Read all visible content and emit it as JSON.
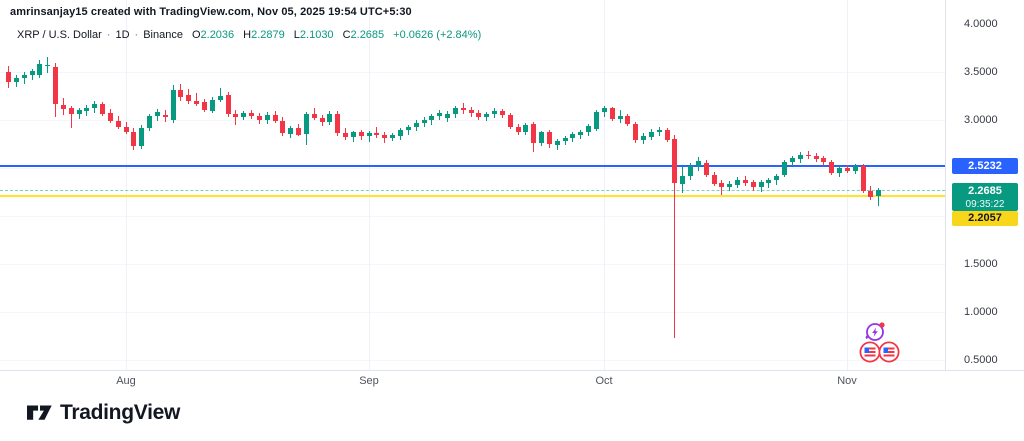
{
  "attribution": "amrinsanjay15 created with TradingView.com, Nov 05, 2025 19:54 UTC+5:30",
  "legend": {
    "symbol": "XRP / U.S. Dollar",
    "timeframe": "1D",
    "exchange": "Binance",
    "sep": "·",
    "ohlc": [
      {
        "label": "O",
        "value": "2.2036"
      },
      {
        "label": "H",
        "value": "2.2879"
      },
      {
        "label": "L",
        "value": "2.1030"
      },
      {
        "label": "C",
        "value": "2.2685"
      }
    ],
    "change": "+0.0626 (+2.84%)"
  },
  "footer": {
    "logo_text": "TradingView"
  },
  "icons": {
    "event_flash": "flash-event-icon",
    "event_flags": "us-economic-events-icon"
  },
  "colors": {
    "up": "#089981",
    "down": "#f23645",
    "blue_line": "#2962ff",
    "yellow_line": "#ffe32e",
    "yellow_badge": "#f8d61b",
    "current_dotted": "rgba(8,153,129,0.5)"
  },
  "chart_data": {
    "type": "candlestick",
    "title": "XRP / U.S. Dollar",
    "interval": "1D",
    "exchange": "Binance",
    "y_axis": {
      "range": [
        0.396,
        4.104
      ],
      "labels": [
        {
          "text": "4.0000",
          "price": 4.0
        },
        {
          "text": "3.5000",
          "price": 3.5
        },
        {
          "text": "3.0000",
          "price": 3.0
        },
        {
          "text": "1.5000",
          "price": 1.5
        },
        {
          "text": "1.0000",
          "price": 1.0
        },
        {
          "text": "0.5000",
          "price": 0.5
        }
      ],
      "grid_prices": [
        3.5,
        3.0,
        2.5,
        2.0,
        1.5,
        1.0,
        0.5
      ]
    },
    "x_axis": {
      "ticks": [
        {
          "label": "Aug",
          "index": 15
        },
        {
          "label": "Sep",
          "index": 46
        },
        {
          "label": "Oct",
          "index": 76
        },
        {
          "label": "Nov",
          "index": 107
        }
      ]
    },
    "levels": [
      {
        "price": 2.5232,
        "label": "2.5232",
        "style": "solid",
        "color": "#2962ff"
      },
      {
        "price": 2.2685,
        "label": "2.2685",
        "countdown": "09:35:22",
        "style": "dotted",
        "color": "rgba(8,153,129,0.5)",
        "type": "current-price"
      },
      {
        "price": 2.2057,
        "label": "2.2057",
        "style": "solid",
        "color": "#ffe32e"
      }
    ],
    "candles": [
      [
        "2025-07-17",
        3.5,
        3.56,
        3.33,
        3.4
      ],
      [
        "2025-07-18",
        3.4,
        3.47,
        3.35,
        3.44
      ],
      [
        "2025-07-19",
        3.44,
        3.5,
        3.38,
        3.47
      ],
      [
        "2025-07-20",
        3.47,
        3.53,
        3.42,
        3.51
      ],
      [
        "2025-07-21",
        3.47,
        3.63,
        3.44,
        3.58
      ],
      [
        "2025-07-22",
        3.56,
        3.66,
        3.49,
        3.57
      ],
      [
        "2025-07-23",
        3.55,
        3.59,
        3.03,
        3.16
      ],
      [
        "2025-07-24",
        3.16,
        3.23,
        3.05,
        3.12
      ],
      [
        "2025-07-25",
        3.12,
        3.15,
        2.92,
        3.06
      ],
      [
        "2025-07-26",
        3.06,
        3.13,
        3.02,
        3.1
      ],
      [
        "2025-07-27",
        3.1,
        3.16,
        3.05,
        3.13
      ],
      [
        "2025-07-28",
        3.13,
        3.2,
        3.08,
        3.17
      ],
      [
        "2025-07-29",
        3.17,
        3.19,
        3.04,
        3.07
      ],
      [
        "2025-07-30",
        3.07,
        3.11,
        2.96,
        2.99
      ],
      [
        "2025-07-31",
        2.99,
        3.04,
        2.9,
        2.93
      ],
      [
        "2025-08-01",
        2.93,
        2.98,
        2.85,
        2.88
      ],
      [
        "2025-08-02",
        2.88,
        2.92,
        2.69,
        2.73
      ],
      [
        "2025-08-03",
        2.73,
        2.95,
        2.7,
        2.92
      ],
      [
        "2025-08-04",
        2.92,
        3.06,
        2.88,
        3.04
      ],
      [
        "2025-08-05",
        3.04,
        3.11,
        2.98,
        3.08
      ],
      [
        "2025-08-06",
        3.05,
        3.1,
        2.97,
        3.03
      ],
      [
        "2025-08-07",
        3.0,
        3.36,
        2.96,
        3.31
      ],
      [
        "2025-08-08",
        3.31,
        3.38,
        3.2,
        3.24
      ],
      [
        "2025-08-09",
        3.26,
        3.32,
        3.16,
        3.2
      ],
      [
        "2025-08-10",
        3.2,
        3.28,
        3.14,
        3.17
      ],
      [
        "2025-08-11",
        3.19,
        3.22,
        3.08,
        3.11
      ],
      [
        "2025-08-12",
        3.1,
        3.24,
        3.07,
        3.21
      ],
      [
        "2025-08-13",
        3.21,
        3.33,
        3.18,
        3.25
      ],
      [
        "2025-08-14",
        3.26,
        3.29,
        3.03,
        3.06
      ],
      [
        "2025-08-15",
        3.06,
        3.1,
        2.94,
        3.03
      ],
      [
        "2025-08-16",
        3.03,
        3.09,
        3.0,
        3.07
      ],
      [
        "2025-08-17",
        3.07,
        3.1,
        3.01,
        3.04
      ],
      [
        "2025-08-18",
        3.04,
        3.07,
        2.96,
        3.0
      ],
      [
        "2025-08-19",
        3.0,
        3.08,
        2.95,
        3.05
      ],
      [
        "2025-08-20",
        3.05,
        3.09,
        2.96,
        2.99
      ],
      [
        "2025-08-21",
        2.99,
        3.03,
        2.83,
        2.86
      ],
      [
        "2025-08-22",
        2.86,
        2.94,
        2.82,
        2.92
      ],
      [
        "2025-08-23",
        2.92,
        2.96,
        2.83,
        2.85
      ],
      [
        "2025-08-24",
        2.85,
        3.08,
        2.74,
        3.06
      ],
      [
        "2025-08-25",
        3.06,
        3.13,
        3.0,
        3.02
      ],
      [
        "2025-08-26",
        3.02,
        3.05,
        2.94,
        2.98
      ],
      [
        "2025-08-27",
        2.98,
        3.09,
        2.94,
        3.06
      ],
      [
        "2025-08-28",
        3.06,
        3.09,
        2.83,
        2.86
      ],
      [
        "2025-08-29",
        2.86,
        2.92,
        2.79,
        2.82
      ],
      [
        "2025-08-30",
        2.82,
        2.89,
        2.78,
        2.87
      ],
      [
        "2025-08-31",
        2.87,
        2.9,
        2.8,
        2.83
      ],
      [
        "2025-09-01",
        2.83,
        2.89,
        2.78,
        2.86
      ],
      [
        "2025-09-02",
        2.86,
        2.93,
        2.82,
        2.84
      ],
      [
        "2025-09-03",
        2.84,
        2.88,
        2.77,
        2.81
      ],
      [
        "2025-09-04",
        2.81,
        2.86,
        2.78,
        2.84
      ],
      [
        "2025-09-05",
        2.84,
        2.92,
        2.8,
        2.9
      ],
      [
        "2025-09-06",
        2.9,
        2.95,
        2.85,
        2.93
      ],
      [
        "2025-09-07",
        2.93,
        3.0,
        2.89,
        2.97
      ],
      [
        "2025-09-08",
        2.97,
        3.03,
        2.93,
        3.0
      ],
      [
        "2025-09-09",
        3.0,
        3.06,
        2.95,
        3.04
      ],
      [
        "2025-09-10",
        3.04,
        3.1,
        3.0,
        3.07
      ],
      [
        "2025-09-11",
        3.02,
        3.09,
        2.98,
        3.06
      ],
      [
        "2025-09-12",
        3.06,
        3.15,
        3.03,
        3.12
      ],
      [
        "2025-09-13",
        3.12,
        3.18,
        3.07,
        3.1
      ],
      [
        "2025-09-14",
        3.1,
        3.14,
        3.04,
        3.07
      ],
      [
        "2025-09-15",
        3.07,
        3.1,
        3.0,
        3.03
      ],
      [
        "2025-09-16",
        3.03,
        3.08,
        2.99,
        3.06
      ],
      [
        "2025-09-17",
        3.06,
        3.12,
        3.02,
        3.09
      ],
      [
        "2025-09-18",
        3.09,
        3.11,
        3.02,
        3.05
      ],
      [
        "2025-09-19",
        3.05,
        3.07,
        2.9,
        2.93
      ],
      [
        "2025-09-20",
        2.93,
        2.96,
        2.85,
        2.88
      ],
      [
        "2025-09-21",
        2.88,
        2.97,
        2.85,
        2.95
      ],
      [
        "2025-09-22",
        2.96,
        2.98,
        2.67,
        2.76
      ],
      [
        "2025-09-23",
        2.76,
        2.89,
        2.73,
        2.87
      ],
      [
        "2025-09-24",
        2.87,
        2.9,
        2.71,
        2.74
      ],
      [
        "2025-09-25",
        2.74,
        2.8,
        2.69,
        2.78
      ],
      [
        "2025-09-26",
        2.78,
        2.83,
        2.74,
        2.81
      ],
      [
        "2025-09-27",
        2.81,
        2.87,
        2.77,
        2.85
      ],
      [
        "2025-09-28",
        2.85,
        2.9,
        2.81,
        2.88
      ],
      [
        "2025-09-29",
        2.88,
        2.96,
        2.84,
        2.94
      ],
      [
        "2025-09-30",
        2.9,
        3.1,
        2.88,
        3.08
      ],
      [
        "2025-10-01",
        3.08,
        3.15,
        3.04,
        3.12
      ],
      [
        "2025-10-02",
        3.12,
        3.14,
        2.99,
        3.01
      ],
      [
        "2025-10-03",
        3.01,
        3.1,
        2.96,
        3.04
      ],
      [
        "2025-10-04",
        3.04,
        3.06,
        2.93,
        2.96
      ],
      [
        "2025-10-05",
        2.96,
        2.98,
        2.76,
        2.79
      ],
      [
        "2025-10-06",
        2.79,
        2.86,
        2.75,
        2.83
      ],
      [
        "2025-10-07",
        2.83,
        2.91,
        2.8,
        2.88
      ],
      [
        "2025-10-08",
        2.88,
        2.93,
        2.84,
        2.9
      ],
      [
        "2025-10-09",
        2.9,
        2.92,
        2.77,
        2.8
      ],
      [
        "2025-10-10",
        2.8,
        2.84,
        0.73,
        2.34
      ],
      [
        "2025-10-11",
        2.34,
        2.52,
        2.24,
        2.42
      ],
      [
        "2025-10-12",
        2.42,
        2.55,
        2.37,
        2.52
      ],
      [
        "2025-10-13",
        2.52,
        2.61,
        2.46,
        2.57
      ],
      [
        "2025-10-14",
        2.55,
        2.58,
        2.4,
        2.43
      ],
      [
        "2025-10-15",
        2.43,
        2.46,
        2.31,
        2.34
      ],
      [
        "2025-10-16",
        2.34,
        2.37,
        2.21,
        2.3
      ],
      [
        "2025-10-17",
        2.3,
        2.36,
        2.26,
        2.33
      ],
      [
        "2025-10-18",
        2.33,
        2.41,
        2.3,
        2.38
      ],
      [
        "2025-10-19",
        2.38,
        2.42,
        2.32,
        2.35
      ],
      [
        "2025-10-20",
        2.35,
        2.38,
        2.27,
        2.3
      ],
      [
        "2025-10-21",
        2.3,
        2.37,
        2.25,
        2.35
      ],
      [
        "2025-10-22",
        2.35,
        2.4,
        2.3,
        2.38
      ],
      [
        "2025-10-23",
        2.38,
        2.44,
        2.33,
        2.42
      ],
      [
        "2025-10-24",
        2.42,
        2.58,
        2.4,
        2.56
      ],
      [
        "2025-10-25",
        2.56,
        2.62,
        2.52,
        2.6
      ],
      [
        "2025-10-26",
        2.6,
        2.67,
        2.56,
        2.64
      ],
      [
        "2025-10-27",
        2.64,
        2.68,
        2.6,
        2.63
      ],
      [
        "2025-10-28",
        2.63,
        2.66,
        2.57,
        2.6
      ],
      [
        "2025-10-29",
        2.6,
        2.63,
        2.53,
        2.56
      ],
      [
        "2025-10-30",
        2.56,
        2.58,
        2.42,
        2.45
      ],
      [
        "2025-10-31",
        2.45,
        2.52,
        2.41,
        2.5
      ],
      [
        "2025-11-01",
        2.5,
        2.53,
        2.45,
        2.47
      ],
      [
        "2025-11-02",
        2.47,
        2.54,
        2.44,
        2.52
      ],
      [
        "2025-11-03",
        2.52,
        2.54,
        2.24,
        2.26
      ],
      [
        "2025-11-04",
        2.26,
        2.31,
        2.16,
        2.2
      ],
      [
        "2025-11-05",
        2.2036,
        2.2879,
        2.103,
        2.2685
      ]
    ]
  }
}
